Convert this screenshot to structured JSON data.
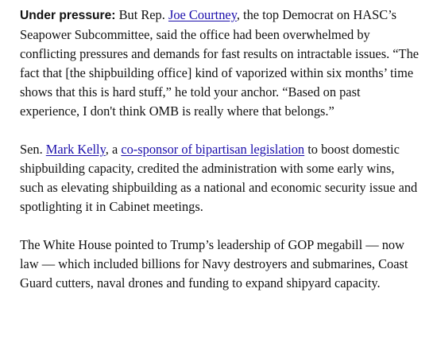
{
  "article": {
    "p1": {
      "lead": "Under pressure:",
      "t1": " But Rep. ",
      "link1": "Joe Courtney",
      "t2": ", the top Democrat on HASC’s Seapower Subcommittee, said the office had been overwhelmed by conflicting pressures and demands for fast results on intractable issues. “The fact that [the shipbuilding office] kind of vaporized within six months’ time shows that this is hard stuff,” he told your anchor. “Based on past experience, I don't think OMB is really where that belongs.”"
    },
    "p2": {
      "t1": "Sen. ",
      "link1": "Mark Kelly",
      "t2": ", a ",
      "link2": "co-sponsor of bipartisan legislation",
      "t3": " to boost domestic shipbuilding capacity, credited the administration with some early wins, such as elevating shipbuilding as a national and economic security issue and spotlighting it in Cabinet meetings."
    },
    "p3": {
      "text": "The White House pointed to Trump’s leadership of GOP megabill — now law — which included billions for Navy destroyers and submarines, Coast Guard cutters, naval drones and funding to expand shipyard capacity."
    }
  },
  "colors": {
    "link": "#1a0dab",
    "text": "#111111"
  }
}
